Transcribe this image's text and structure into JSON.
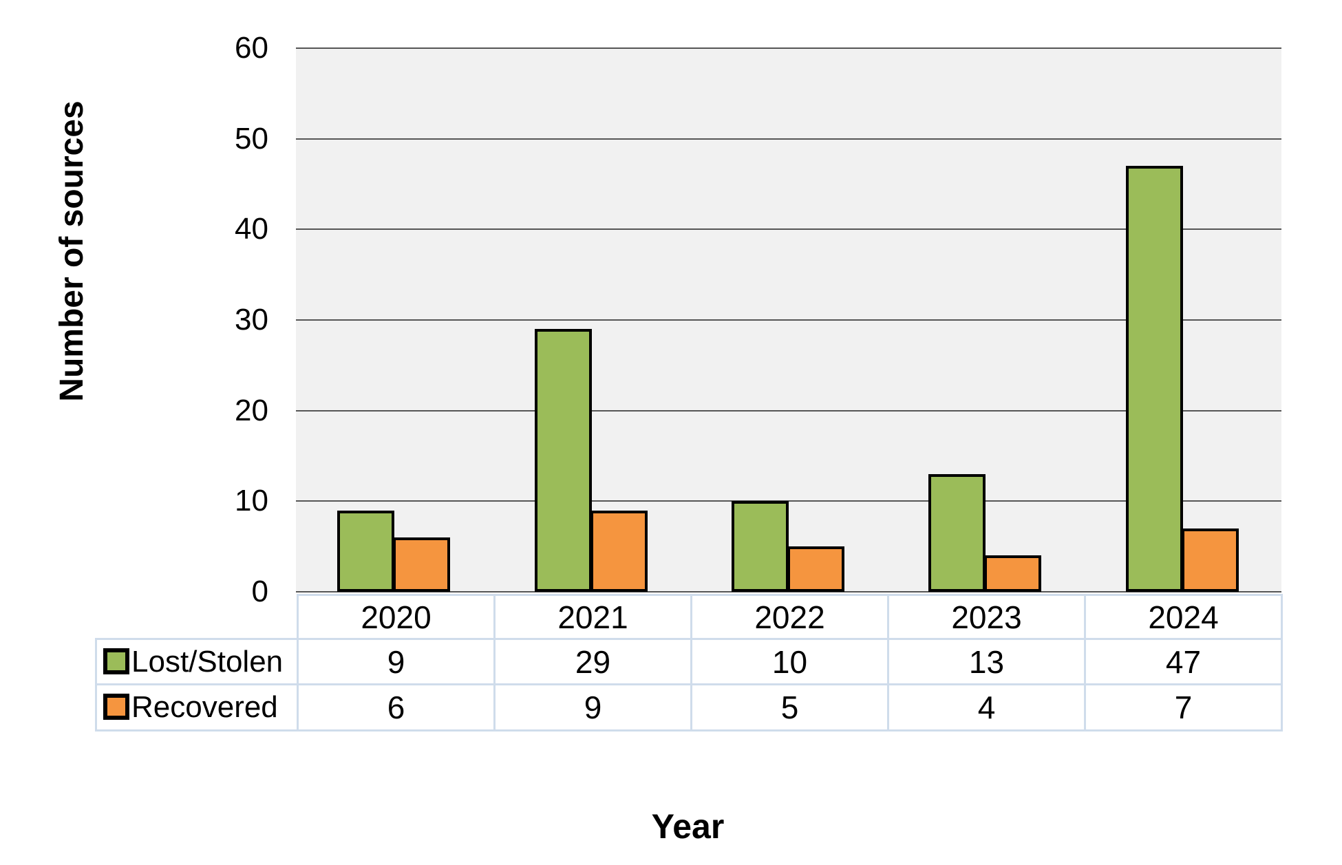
{
  "chart_data": {
    "type": "bar",
    "title": "",
    "xlabel": "Year",
    "ylabel": "Number of sources",
    "categories": [
      "2020",
      "2021",
      "2022",
      "2023",
      "2024"
    ],
    "series": [
      {
        "name": "Lost/Stolen",
        "values": [
          9,
          29,
          10,
          13,
          47
        ],
        "color": "#9bbc59"
      },
      {
        "name": "Recovered",
        "values": [
          6,
          9,
          5,
          4,
          7
        ],
        "color": "#f5953f"
      }
    ],
    "ylim": [
      0,
      60
    ],
    "yticks": [
      0,
      10,
      20,
      30,
      40,
      50,
      60
    ],
    "grid": true,
    "legend_position": "table-left-column",
    "colors": {
      "plot_background": "#f1f1f1",
      "gridline": "#555555",
      "bar_outline": "#000000",
      "table_border": "#cfdceb",
      "text": "#000000"
    }
  }
}
